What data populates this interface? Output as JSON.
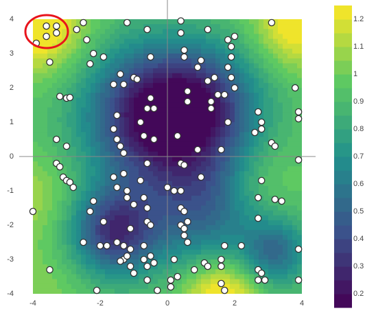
{
  "chart_data": {
    "type": "contour-scatter",
    "xlim": [
      -4,
      4
    ],
    "ylim": [
      -4,
      4
    ],
    "xticks": [
      -4,
      -2,
      0,
      2,
      4
    ],
    "yticks": [
      -4,
      -3,
      -2,
      -1,
      0,
      1,
      2,
      3,
      4
    ],
    "zlim": [
      0.15,
      1.25
    ],
    "zticks": [
      0.2,
      0.3,
      0.4,
      0.5,
      0.6,
      0.7,
      0.8,
      0.9,
      1,
      1.1,
      1.2
    ],
    "levels": [
      0.15,
      0.2,
      0.25,
      0.3,
      0.35,
      0.4,
      0.45,
      0.5,
      0.55,
      0.6,
      0.65,
      0.7,
      0.75,
      0.8,
      0.85,
      0.9,
      0.95,
      1,
      1.05,
      1.1,
      1.15,
      1.2
    ],
    "colorscale": [
      "#440154",
      "#3b528b",
      "#21918c",
      "#5ec962",
      "#fde725"
    ],
    "point_color": "#ffffff",
    "x": [
      -3.6,
      -3.3,
      -3.9,
      -3.6,
      -3.3,
      -2.7,
      -2.5,
      -1.2,
      -0.6,
      0.4,
      0.4,
      1.2,
      2.0,
      1.8,
      1.9,
      3.1,
      -3.5,
      -2.4,
      -2.2,
      -2.3,
      0.5,
      0.5,
      1.0,
      1.9,
      1.8,
      1.9,
      2.0,
      1.4,
      1.2,
      1.5,
      0.9,
      -0.5,
      -1.9,
      -1.4,
      -1.3,
      -1.0,
      -0.9,
      -1.6,
      -0.5,
      0.6,
      0.6,
      -0.6,
      -0.4,
      1.3,
      1.3,
      1.7,
      -3.2,
      -3.0,
      -2.9,
      -1.5,
      -0.8,
      -0.7,
      -0.4,
      0.3,
      1.8,
      2.7,
      2.8,
      2.8,
      3.8,
      3.9,
      3.9,
      3.1,
      3.2,
      -3.3,
      -3.0,
      -1.6,
      -1.5,
      -1.4,
      -1.3,
      0.9,
      0.4,
      0.5,
      -0.6,
      1.6,
      2.6,
      -3.3,
      -3.2,
      -3.1,
      -3.0,
      -2.9,
      3.9,
      1.0,
      -1.6,
      -1.3,
      -1.2,
      -1.5,
      -1.2,
      -2.2,
      -2.3,
      -2.8,
      -4.0,
      2.8,
      3.4,
      2.7,
      0.4,
      -0.8,
      -0.7,
      0.0,
      -1.0,
      -1.9,
      -2.5,
      -1.5,
      -1.1,
      -1.3,
      -1.3,
      -1.4,
      -1.8,
      -2.0,
      -1.2,
      -1.1,
      0.4,
      0.4,
      0.5,
      0.2,
      0.6,
      0.5,
      0.5,
      0.6,
      2.7,
      3.2,
      -0.6,
      -0.6,
      -0.5,
      -0.7,
      -0.5,
      -0.7,
      -0.6,
      -1.1,
      -1.0,
      0.2,
      -0.4,
      1.1,
      1.2,
      0.8,
      1.7,
      1.6,
      1.6,
      2.2,
      -3.5,
      -0.6,
      -2.1,
      0.1,
      0.3,
      0.1,
      -0.3,
      1.6,
      1.7,
      2.7,
      2.8,
      2.7,
      2.9,
      3.9,
      3.9
    ],
    "y": [
      3.8,
      3.8,
      3.3,
      3.5,
      3.6,
      3.7,
      3.9,
      3.9,
      3.7,
      3.95,
      3.6,
      3.7,
      3.5,
      3.4,
      3.2,
      3.9,
      2.75,
      3.4,
      3.0,
      2.7,
      3.1,
      2.9,
      2.8,
      2.9,
      2.6,
      2.3,
      2.0,
      2.3,
      2.2,
      1.8,
      2.6,
      2.9,
      2.9,
      2.4,
      2.1,
      2.3,
      2.25,
      2.1,
      1.7,
      1.9,
      1.6,
      1.4,
      1.4,
      1.6,
      1.4,
      1.8,
      1.75,
      1.7,
      1.72,
      1.2,
      1.0,
      0.6,
      0.5,
      0.6,
      1.0,
      1.3,
      1.0,
      0.8,
      2.0,
      1.3,
      1.1,
      0.4,
      0.3,
      0.5,
      0.3,
      0.8,
      0.5,
      0.3,
      0.1,
      0.2,
      -0.2,
      -0.25,
      -0.2,
      0.2,
      0.7,
      -0.2,
      -0.3,
      -0.6,
      -0.7,
      -0.75,
      -0.1,
      -0.6,
      -0.6,
      -0.5,
      -1.0,
      -0.9,
      -1.2,
      -1.3,
      -1.6,
      -0.9,
      -1.6,
      -0.7,
      -1.3,
      -1.2,
      -1.0,
      -0.7,
      -1.2,
      -0.9,
      -1.4,
      -1.9,
      -2.5,
      -2.5,
      -2.1,
      -2.6,
      -3.0,
      -3.05,
      -2.6,
      -2.6,
      -2.9,
      -2.7,
      -1.5,
      -2.0,
      -1.6,
      -1.0,
      -1.9,
      -2.1,
      -2.3,
      -2.5,
      -1.8,
      -1.25,
      -1.5,
      -1.9,
      -2.0,
      -2.6,
      -2.9,
      -3.0,
      -3.2,
      -3.2,
      -3.4,
      -3.0,
      -3.1,
      -3.1,
      -3.2,
      -3.3,
      -2.6,
      -3.0,
      -3.2,
      -2.6,
      -3.3,
      -3.6,
      -3.9,
      -3.6,
      -3.5,
      -3.8,
      -3.9,
      -3.7,
      -3.9,
      -3.3,
      -3.4,
      -3.6,
      -3.6,
      -3.6,
      -2.7
    ]
  }
}
